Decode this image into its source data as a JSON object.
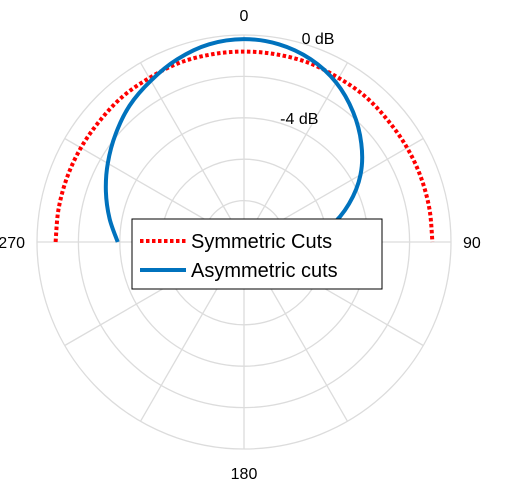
{
  "chart_data": {
    "type": "line",
    "subtype": "polar",
    "angle_unit": "degrees",
    "angle_zero": "top",
    "angle_direction": "clockwise",
    "angle_tick_labels": [
      {
        "angle": 0,
        "label": "0"
      },
      {
        "angle": 90,
        "label": "90"
      },
      {
        "angle": 180,
        "label": "180"
      },
      {
        "angle": 270,
        "label": "270"
      }
    ],
    "radial_tick_labels": [
      {
        "value": 0,
        "label": "0 dB"
      },
      {
        "value": -4,
        "label": "-4 dB"
      }
    ],
    "radial_range_db": [
      -10,
      0
    ],
    "grid": true,
    "grid_angle_step": 30,
    "grid_radial_step_db": 2,
    "legend_position": "center-left",
    "series": [
      {
        "name": "Symmetric Cuts",
        "style": "dotted",
        "color": "#ff0000",
        "theta": [
          -90,
          -80,
          -70,
          -60,
          -50,
          -40,
          -30,
          -20,
          -10,
          0,
          10,
          20,
          30,
          40,
          50,
          60,
          70,
          80,
          90
        ],
        "r_db": [
          -0.9,
          -0.9,
          -0.9,
          -0.9,
          -0.9,
          -0.85,
          -0.85,
          -0.8,
          -0.8,
          -0.8,
          -0.8,
          -0.8,
          -0.85,
          -0.85,
          -0.9,
          -0.9,
          -0.9,
          -0.9,
          -0.9
        ]
      },
      {
        "name": "Asymmetric cuts",
        "style": "solid",
        "color": "#0072bd",
        "theta": [
          -90,
          -80,
          -70,
          -60,
          -50,
          -40,
          -30,
          -20,
          -10,
          0,
          10,
          20,
          30,
          40,
          50,
          60,
          70,
          80,
          90
        ],
        "r_db": [
          -3.9,
          -3.4,
          -2.9,
          -2.4,
          -1.9,
          -1.4,
          -1.0,
          -0.6,
          -0.3,
          -0.2,
          -0.3,
          -0.6,
          -1.1,
          -1.8,
          -2.6,
          -3.5,
          -4.6,
          -5.8,
          -7.2
        ]
      }
    ]
  }
}
